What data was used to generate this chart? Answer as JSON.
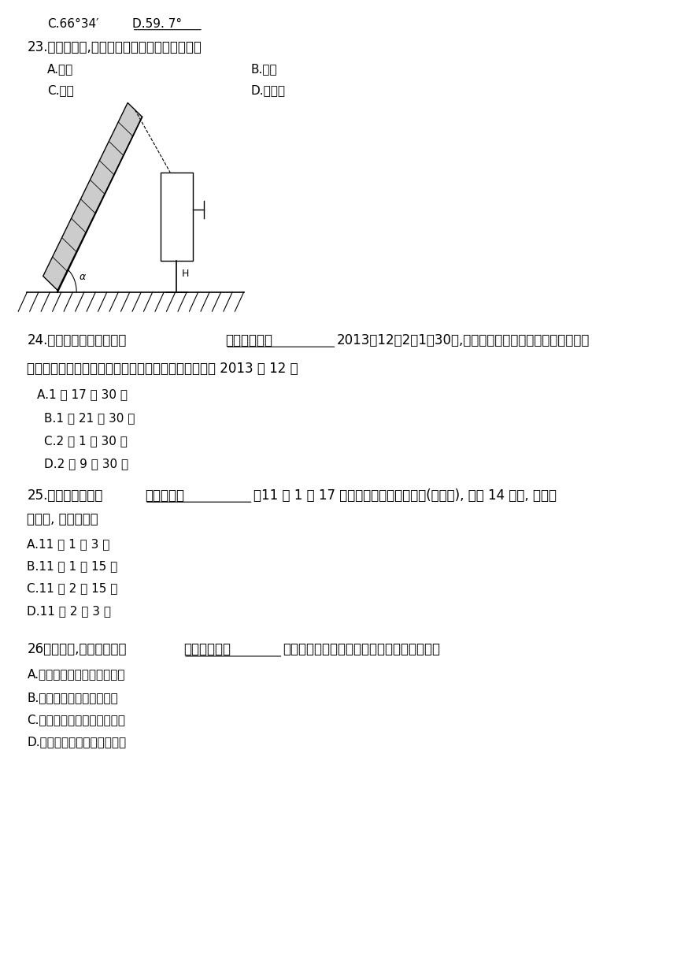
{
  "bg_color": "#ffffff",
  "text_color": "#000000",
  "line1_c": "C.66°34′",
  "line1_d": "D.59. 7°",
  "q23": "23.下列地区中,使用太阳能热水器效果最好的是",
  "q23a": "A.海口",
  "q23b": "B.重庆",
  "q23c": "C.拉萨",
  "q23d": "D.吐鲁番",
  "q24_pre": "24.我国娥娥三号月球探测",
  "q24_under": "器于北京时间",
  "q24_post": "2013年12月2日1旰30分,在四川西昌卫星发射中心成功发射。",
  "q24_line2": "据此回答下题。发射时刻的国际标准时间（世界时）是 2013 年 12 月",
  "q24a": "A.1 日 17 时 30 分",
  "q24b": "B.1 日 21 时 30 分",
  "q24c": "C.2 日 1 时 30 分",
  "q24d": "D.2 日 9 时 30 分",
  "q25_pre": "25.某航空公司一架",
  "q25_under": "飞机于北京",
  "q25_post": "时11 月 1 日 17 时由上海飞往美国旧金山(西八区), 历时 14 小时, 到达旧",
  "q25_line2": "金山时, 当地时间是",
  "q25a": "A.11 月 1 日 3 时",
  "q25b": "B.11 月 1 日 15 时",
  "q25c": "C.11 月 2 日 15 时",
  "q25d": "D.11 月 2 日 3 时",
  "q26_pre": "26．夏至日,广州、武汉、",
  "q26_under": "北京、哈尔滨",
  "q26_post": "四城市的正午太阳高度由大到小排列正确的是",
  "q26a": "A.广州、武汉、北京、哈尔滨",
  "q26b": "B.广、北京、武汉、哈尔滨",
  "q26c": "C.哈尔滨、北京、武汉、广州",
  "q26d": "D.武汉、广州、哈尔滨、北京"
}
